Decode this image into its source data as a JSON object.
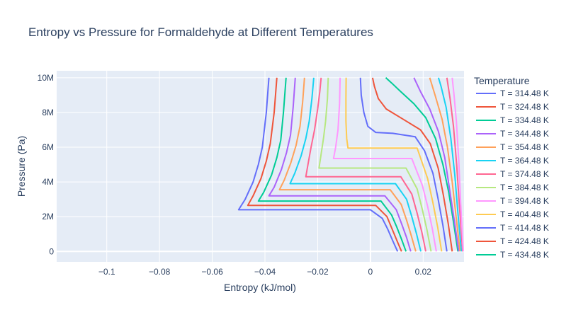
{
  "chart_data": {
    "type": "line",
    "title": "Entropy vs Pressure for Formaldehyde at Different Temperatures",
    "xlabel": "Entropy (kJ/mol)",
    "ylabel": "Pressure (Pa)",
    "legend_title": "Temperature",
    "legend_position": "right",
    "grid": true,
    "xlim": [
      -0.119,
      0.0355
    ],
    "ylim": [
      -600000,
      10400000
    ],
    "x_ticks": [
      {
        "v": -0.1,
        "label": "−0.1"
      },
      {
        "v": -0.08,
        "label": "−0.08"
      },
      {
        "v": -0.06,
        "label": "−0.06"
      },
      {
        "v": -0.04,
        "label": "−0.04"
      },
      {
        "v": -0.02,
        "label": "−0.02"
      },
      {
        "v": 0,
        "label": "0"
      },
      {
        "v": 0.02,
        "label": "0.02"
      }
    ],
    "y_ticks": [
      {
        "v": 0,
        "label": "0"
      },
      {
        "v": 2000000,
        "label": "2M"
      },
      {
        "v": 4000000,
        "label": "4M"
      },
      {
        "v": 6000000,
        "label": "6M"
      },
      {
        "v": 8000000,
        "label": "8M"
      },
      {
        "v": 10000000,
        "label": "10M"
      }
    ],
    "series": [
      {
        "name": "T = 314.48 K",
        "color": "#636efa",
        "points": [
          [
            0.0103,
            0
          ],
          [
            0.0085,
            600000
          ],
          [
            0.0065,
            1300000
          ],
          [
            0.0045,
            1900000
          ],
          [
            0.0,
            2400000
          ],
          [
            -0.05,
            2400000
          ],
          [
            -0.0475,
            3000000
          ],
          [
            -0.0445,
            4000000
          ],
          [
            -0.0425,
            5000000
          ],
          [
            -0.041,
            6000000
          ],
          [
            -0.0395,
            8000000
          ],
          [
            -0.0385,
            10000000
          ]
        ]
      },
      {
        "name": "T = 324.48 K",
        "color": "#ef553b",
        "points": [
          [
            0.0118,
            0
          ],
          [
            0.0101,
            600000
          ],
          [
            0.0082,
            1300000
          ],
          [
            0.0063,
            2000000
          ],
          [
            0.002,
            2650000
          ],
          [
            -0.0465,
            2650000
          ],
          [
            -0.0445,
            3200000
          ],
          [
            -0.0415,
            4200000
          ],
          [
            -0.0395,
            5200000
          ],
          [
            -0.038,
            6200000
          ],
          [
            -0.0365,
            8000000
          ],
          [
            -0.0355,
            10000000
          ]
        ]
      },
      {
        "name": "T = 334.48 K",
        "color": "#00cc96",
        "points": [
          [
            0.0135,
            0
          ],
          [
            0.0118,
            700000
          ],
          [
            0.01,
            1400000
          ],
          [
            0.008,
            2100000
          ],
          [
            0.004,
            2900000
          ],
          [
            -0.0425,
            2900000
          ],
          [
            -0.0405,
            3400000
          ],
          [
            -0.0375,
            4400000
          ],
          [
            -0.0355,
            5400000
          ],
          [
            -0.034,
            6400000
          ],
          [
            -0.033,
            8000000
          ],
          [
            -0.032,
            10000000
          ]
        ]
      },
      {
        "name": "T = 344.48 K",
        "color": "#ab63fa",
        "points": [
          [
            0.0153,
            0
          ],
          [
            0.0137,
            800000
          ],
          [
            0.0118,
            1600000
          ],
          [
            0.0098,
            2400000
          ],
          [
            0.0055,
            3200000
          ],
          [
            -0.0385,
            3200000
          ],
          [
            -0.0365,
            3700000
          ],
          [
            -0.0338,
            4700000
          ],
          [
            -0.0318,
            5700000
          ],
          [
            -0.0303,
            6700000
          ],
          [
            -0.0293,
            8300000
          ],
          [
            -0.0285,
            10000000
          ]
        ]
      },
      {
        "name": "T = 354.48 K",
        "color": "#ffa15a",
        "points": [
          [
            0.0172,
            0
          ],
          [
            0.0155,
            900000
          ],
          [
            0.0137,
            1800000
          ],
          [
            0.0117,
            2700000
          ],
          [
            0.0075,
            3550000
          ],
          [
            -0.0345,
            3550000
          ],
          [
            -0.0327,
            4100000
          ],
          [
            -0.0302,
            5100000
          ],
          [
            -0.0282,
            6100000
          ],
          [
            -0.0267,
            7200000
          ],
          [
            -0.0257,
            8600000
          ],
          [
            -0.025,
            10000000
          ]
        ]
      },
      {
        "name": "T = 364.48 K",
        "color": "#19d3f3",
        "points": [
          [
            0.0191,
            0
          ],
          [
            0.0175,
            1000000
          ],
          [
            0.0157,
            2000000
          ],
          [
            0.0137,
            3000000
          ],
          [
            0.0095,
            3900000
          ],
          [
            -0.0305,
            3900000
          ],
          [
            -0.0287,
            4500000
          ],
          [
            -0.0263,
            5500000
          ],
          [
            -0.0245,
            6500000
          ],
          [
            -0.0232,
            7500000
          ],
          [
            -0.0222,
            8800000
          ],
          [
            -0.0215,
            10000000
          ]
        ]
      },
      {
        "name": "T = 374.48 K",
        "color": "#ff6692",
        "points": [
          [
            0.021,
            0
          ],
          [
            0.0195,
            1100000
          ],
          [
            0.0177,
            2200000
          ],
          [
            0.0157,
            3300000
          ],
          [
            0.0115,
            4300000
          ],
          [
            -0.0245,
            4300000
          ],
          [
            -0.0237,
            5000000
          ],
          [
            -0.0225,
            6000000
          ],
          [
            -0.0212,
            7000000
          ],
          [
            -0.02,
            8200000
          ],
          [
            -0.0192,
            9200000
          ],
          [
            -0.0187,
            10000000
          ]
        ]
      },
      {
        "name": "T = 384.48 K",
        "color": "#b6e880",
        "points": [
          [
            0.023,
            0
          ],
          [
            0.0215,
            1200000
          ],
          [
            0.0197,
            2400000
          ],
          [
            0.0177,
            3600000
          ],
          [
            0.0135,
            4800000
          ],
          [
            -0.0195,
            4800000
          ],
          [
            -0.0188,
            5500000
          ],
          [
            -0.0178,
            6500000
          ],
          [
            -0.017,
            7500000
          ],
          [
            -0.0163,
            8800000
          ],
          [
            -0.016,
            10000000
          ]
        ]
      },
      {
        "name": "T = 394.48 K",
        "color": "#ff97ff",
        "points": [
          [
            0.025,
            0
          ],
          [
            0.0235,
            1300000
          ],
          [
            0.0217,
            2600000
          ],
          [
            0.0197,
            3800000
          ],
          [
            0.0157,
            5350000
          ],
          [
            -0.014,
            5350000
          ],
          [
            -0.0132,
            6000000
          ],
          [
            -0.0123,
            7000000
          ],
          [
            -0.0117,
            8500000
          ],
          [
            -0.0115,
            10000000
          ]
        ]
      },
      {
        "name": "T = 404.48 K",
        "color": "#fecb52",
        "points": [
          [
            0.027,
            0
          ],
          [
            0.0255,
            1400000
          ],
          [
            0.0237,
            2800000
          ],
          [
            0.0217,
            4200000
          ],
          [
            0.0177,
            5950000
          ],
          [
            -0.0085,
            5950000
          ],
          [
            -0.009,
            6500000
          ],
          [
            -0.0093,
            7500000
          ],
          [
            -0.0093,
            8800000
          ],
          [
            -0.0092,
            10000000
          ]
        ]
      },
      {
        "name": "T = 414.48 K",
        "color": "#636efa",
        "points": [
          [
            0.029,
            0
          ],
          [
            0.0275,
            1500000
          ],
          [
            0.0257,
            3000000
          ],
          [
            0.0237,
            4500000
          ],
          [
            0.0205,
            5800000
          ],
          [
            0.017,
            6600000
          ],
          [
            0.0085,
            6800000
          ],
          [
            0.002,
            6850000
          ],
          [
            -0.001,
            7200000
          ],
          [
            -0.0025,
            8000000
          ],
          [
            -0.0035,
            9000000
          ],
          [
            -0.0038,
            10000000
          ]
        ]
      },
      {
        "name": "T = 424.48 K",
        "color": "#ef553b",
        "points": [
          [
            0.031,
            0
          ],
          [
            0.0295,
            1600000
          ],
          [
            0.0277,
            3200000
          ],
          [
            0.0257,
            4800000
          ],
          [
            0.0227,
            6200000
          ],
          [
            0.019,
            7000000
          ],
          [
            0.0125,
            7600000
          ],
          [
            0.006,
            8200000
          ],
          [
            0.003,
            8800000
          ],
          [
            0.0015,
            9500000
          ],
          [
            0.0008,
            10000000
          ]
        ]
      },
      {
        "name": "T = 434.48 K",
        "color": "#00cc96",
        "points": [
          [
            0.0332,
            0
          ],
          [
            0.0315,
            1700000
          ],
          [
            0.0297,
            3400000
          ],
          [
            0.0275,
            5000000
          ],
          [
            0.0247,
            6500000
          ],
          [
            0.021,
            7700000
          ],
          [
            0.0165,
            8500000
          ],
          [
            0.0115,
            9200000
          ],
          [
            0.008,
            9700000
          ],
          [
            0.0058,
            10000000
          ]
        ]
      },
      {
        "name": "",
        "color": "#ab63fa",
        "points": [
          [
            0.0335,
            0
          ],
          [
            0.0318,
            1800000
          ],
          [
            0.03,
            3600000
          ],
          [
            0.0282,
            5400000
          ],
          [
            0.0258,
            6900000
          ],
          [
            0.0225,
            8200000
          ],
          [
            0.019,
            9200000
          ],
          [
            0.0165,
            10000000
          ]
        ]
      },
      {
        "name": "",
        "color": "#ffa15a",
        "points": [
          [
            0.034,
            0
          ],
          [
            0.0325,
            2000000
          ],
          [
            0.031,
            4000000
          ],
          [
            0.0292,
            6000000
          ],
          [
            0.0272,
            7600000
          ],
          [
            0.0245,
            9000000
          ],
          [
            0.0225,
            10000000
          ]
        ]
      },
      {
        "name": "",
        "color": "#19d3f3",
        "points": [
          [
            0.0345,
            0
          ],
          [
            0.0332,
            2200000
          ],
          [
            0.032,
            4400000
          ],
          [
            0.0305,
            6500000
          ],
          [
            0.0287,
            8300000
          ],
          [
            0.0268,
            9500000
          ],
          [
            0.0258,
            10000000
          ]
        ]
      },
      {
        "name": "",
        "color": "#ff6692",
        "points": [
          [
            0.035,
            0
          ],
          [
            0.0338,
            2500000
          ],
          [
            0.0327,
            5000000
          ],
          [
            0.0315,
            7200000
          ],
          [
            0.0302,
            8800000
          ],
          [
            0.029,
            10000000
          ]
        ]
      },
      {
        "name": "",
        "color": "#ff97ff",
        "points": [
          [
            0.0352,
            0
          ],
          [
            0.0343,
            2600000
          ],
          [
            0.0335,
            5200000
          ],
          [
            0.0326,
            7500000
          ],
          [
            0.0317,
            9000000
          ],
          [
            0.031,
            10000000
          ]
        ]
      }
    ]
  }
}
